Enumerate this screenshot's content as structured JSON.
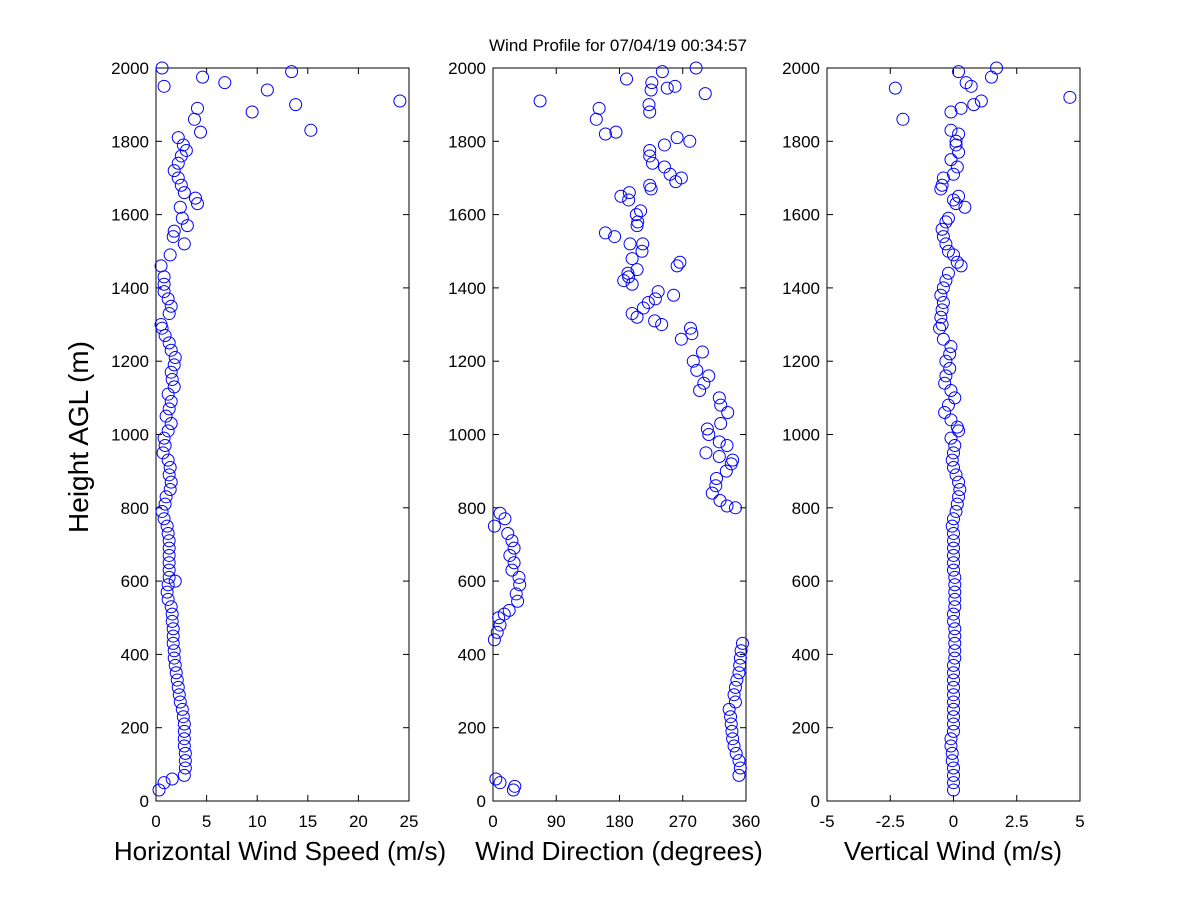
{
  "title": "Wind Profile for  07/04/19 00:34:57",
  "marker_color": "#0000ff",
  "chart_data": [
    {
      "id": "speed",
      "type": "scatter",
      "xlabel": "Horizontal Wind Speed (m/s)",
      "ylabel": "Height AGL (m)",
      "xlim": [
        0,
        25
      ],
      "ylim": [
        0,
        2000
      ],
      "xticks": [
        0,
        5,
        10,
        15,
        20,
        25
      ],
      "xtick_labels": [
        "0",
        "5",
        "10",
        "15",
        "20",
        "25"
      ],
      "yticks": [
        0,
        200,
        400,
        600,
        800,
        1000,
        1200,
        1400,
        1600,
        1800,
        2000
      ],
      "ytick_labels": [
        "0",
        "200",
        "400",
        "600",
        "800",
        "1000",
        "1200",
        "1400",
        "1600",
        "1800",
        "2000"
      ],
      "points": [
        [
          0.3,
          30
        ],
        [
          0.8,
          50
        ],
        [
          1.6,
          60
        ],
        [
          2.8,
          70
        ],
        [
          2.9,
          90
        ],
        [
          2.9,
          110
        ],
        [
          2.9,
          130
        ],
        [
          2.8,
          150
        ],
        [
          2.8,
          170
        ],
        [
          2.8,
          190
        ],
        [
          2.8,
          210
        ],
        [
          2.7,
          230
        ],
        [
          2.6,
          250
        ],
        [
          2.4,
          270
        ],
        [
          2.3,
          290
        ],
        [
          2.2,
          310
        ],
        [
          2.1,
          330
        ],
        [
          2.0,
          350
        ],
        [
          1.9,
          370
        ],
        [
          1.8,
          390
        ],
        [
          1.8,
          410
        ],
        [
          1.7,
          430
        ],
        [
          1.7,
          450
        ],
        [
          1.7,
          470
        ],
        [
          1.6,
          490
        ],
        [
          1.6,
          510
        ],
        [
          1.5,
          530
        ],
        [
          1.2,
          550
        ],
        [
          1.1,
          570
        ],
        [
          1.2,
          590
        ],
        [
          1.9,
          600
        ],
        [
          1.3,
          610
        ],
        [
          1.3,
          630
        ],
        [
          1.3,
          650
        ],
        [
          1.3,
          670
        ],
        [
          1.3,
          690
        ],
        [
          1.3,
          710
        ],
        [
          1.2,
          730
        ],
        [
          1.1,
          750
        ],
        [
          0.8,
          770
        ],
        [
          0.6,
          790
        ],
        [
          0.9,
          810
        ],
        [
          1.0,
          830
        ],
        [
          1.4,
          850
        ],
        [
          1.5,
          870
        ],
        [
          1.3,
          890
        ],
        [
          1.4,
          910
        ],
        [
          1.2,
          930
        ],
        [
          0.7,
          950
        ],
        [
          0.9,
          970
        ],
        [
          0.8,
          990
        ],
        [
          1.2,
          1010
        ],
        [
          1.5,
          1030
        ],
        [
          1.0,
          1050
        ],
        [
          1.3,
          1070
        ],
        [
          1.5,
          1090
        ],
        [
          1.2,
          1110
        ],
        [
          1.8,
          1130
        ],
        [
          1.6,
          1150
        ],
        [
          1.5,
          1170
        ],
        [
          1.8,
          1190
        ],
        [
          1.9,
          1210
        ],
        [
          1.5,
          1230
        ],
        [
          1.3,
          1250
        ],
        [
          0.9,
          1270
        ],
        [
          0.6,
          1290
        ],
        [
          0.5,
          1300
        ],
        [
          1.3,
          1330
        ],
        [
          1.5,
          1350
        ],
        [
          1.2,
          1370
        ],
        [
          0.8,
          1390
        ],
        [
          0.8,
          1410
        ],
        [
          0.8,
          1430
        ],
        [
          0.5,
          1460
        ],
        [
          1.4,
          1490
        ],
        [
          2.8,
          1520
        ],
        [
          1.7,
          1540
        ],
        [
          1.8,
          1555
        ],
        [
          3.1,
          1570
        ],
        [
          2.6,
          1590
        ],
        [
          2.4,
          1620
        ],
        [
          4.1,
          1630
        ],
        [
          3.9,
          1645
        ],
        [
          2.8,
          1660
        ],
        [
          2.5,
          1680
        ],
        [
          2.2,
          1700
        ],
        [
          1.8,
          1720
        ],
        [
          2.2,
          1740
        ],
        [
          2.5,
          1760
        ],
        [
          3.0,
          1775
        ],
        [
          2.7,
          1790
        ],
        [
          2.2,
          1810
        ],
        [
          4.4,
          1825
        ],
        [
          15.3,
          1830
        ],
        [
          3.8,
          1860
        ],
        [
          9.5,
          1880
        ],
        [
          4.1,
          1890
        ],
        [
          13.8,
          1900
        ],
        [
          24.1,
          1910
        ],
        [
          11.0,
          1940
        ],
        [
          0.8,
          1950
        ],
        [
          4.6,
          1975
        ],
        [
          6.8,
          1960
        ],
        [
          13.4,
          1990
        ],
        [
          0.6,
          2000
        ]
      ]
    },
    {
      "id": "direction",
      "type": "scatter",
      "xlabel": "Wind Direction (degrees)",
      "ylabel": "",
      "xlim": [
        0,
        360
      ],
      "ylim": [
        0,
        2000
      ],
      "xticks": [
        0,
        90,
        180,
        270,
        360
      ],
      "xtick_labels": [
        "0",
        "90",
        "180",
        "270",
        "360"
      ],
      "yticks": [
        0,
        200,
        400,
        600,
        800,
        1000,
        1200,
        1400,
        1600,
        1800,
        2000
      ],
      "ytick_labels": [
        "0",
        "200",
        "400",
        "600",
        "800",
        "1000",
        "1200",
        "1400",
        "1600",
        "1800",
        "2000"
      ],
      "points": [
        [
          29,
          30
        ],
        [
          31,
          40
        ],
        [
          4,
          60
        ],
        [
          10,
          50
        ],
        [
          350,
          70
        ],
        [
          352,
          90
        ],
        [
          350,
          110
        ],
        [
          346,
          130
        ],
        [
          343,
          150
        ],
        [
          341,
          170
        ],
        [
          340,
          190
        ],
        [
          339,
          210
        ],
        [
          338,
          230
        ],
        [
          336,
          250
        ],
        [
          345,
          270
        ],
        [
          343,
          290
        ],
        [
          345,
          310
        ],
        [
          347,
          330
        ],
        [
          350,
          350
        ],
        [
          351,
          370
        ],
        [
          352,
          390
        ],
        [
          353,
          410
        ],
        [
          355,
          430
        ],
        [
          2,
          440
        ],
        [
          6,
          460
        ],
        [
          10,
          480
        ],
        [
          8,
          500
        ],
        [
          16,
          510
        ],
        [
          23,
          520
        ],
        [
          35,
          545
        ],
        [
          33,
          565
        ],
        [
          38,
          590
        ],
        [
          37,
          610
        ],
        [
          27,
          630
        ],
        [
          30,
          650
        ],
        [
          24,
          670
        ],
        [
          30,
          690
        ],
        [
          27,
          710
        ],
        [
          21,
          730
        ],
        [
          2,
          750
        ],
        [
          17,
          770
        ],
        [
          10,
          785
        ],
        [
          345,
          800
        ],
        [
          333,
          805
        ],
        [
          323,
          820
        ],
        [
          312,
          840
        ],
        [
          317,
          860
        ],
        [
          318,
          880
        ],
        [
          332,
          900
        ],
        [
          339,
          920
        ],
        [
          341,
          930
        ],
        [
          322,
          940
        ],
        [
          303,
          950
        ],
        [
          333,
          970
        ],
        [
          322,
          980
        ],
        [
          307,
          1000
        ],
        [
          305,
          1015
        ],
        [
          324,
          1030
        ],
        [
          334,
          1060
        ],
        [
          324,
          1080
        ],
        [
          322,
          1100
        ],
        [
          294,
          1120
        ],
        [
          300,
          1140
        ],
        [
          307,
          1160
        ],
        [
          290,
          1175
        ],
        [
          285,
          1200
        ],
        [
          298,
          1225
        ],
        [
          268,
          1260
        ],
        [
          283,
          1275
        ],
        [
          281,
          1290
        ],
        [
          240,
          1300
        ],
        [
          230,
          1310
        ],
        [
          205,
          1320
        ],
        [
          198,
          1330
        ],
        [
          214,
          1345
        ],
        [
          221,
          1360
        ],
        [
          231,
          1370
        ],
        [
          257,
          1380
        ],
        [
          235,
          1390
        ],
        [
          198,
          1410
        ],
        [
          186,
          1420
        ],
        [
          193,
          1430
        ],
        [
          192,
          1440
        ],
        [
          205,
          1450
        ],
        [
          262,
          1460
        ],
        [
          266,
          1470
        ],
        [
          198,
          1480
        ],
        [
          212,
          1500
        ],
        [
          195,
          1520
        ],
        [
          213,
          1520
        ],
        [
          173,
          1540
        ],
        [
          160,
          1550
        ],
        [
          205,
          1570
        ],
        [
          206,
          1580
        ],
        [
          204,
          1600
        ],
        [
          210,
          1610
        ],
        [
          193,
          1640
        ],
        [
          182,
          1650
        ],
        [
          194,
          1660
        ],
        [
          225,
          1670
        ],
        [
          223,
          1680
        ],
        [
          260,
          1690
        ],
        [
          268,
          1700
        ],
        [
          252,
          1710
        ],
        [
          244,
          1730
        ],
        [
          227,
          1740
        ],
        [
          223,
          1760
        ],
        [
          223,
          1775
        ],
        [
          244,
          1790
        ],
        [
          280,
          1800
        ],
        [
          262,
          1810
        ],
        [
          175,
          1825
        ],
        [
          160,
          1820
        ],
        [
          147,
          1860
        ],
        [
          151,
          1890
        ],
        [
          223,
          1880
        ],
        [
          222,
          1900
        ],
        [
          67,
          1910
        ],
        [
          302,
          1930
        ],
        [
          225,
          1940
        ],
        [
          248,
          1945
        ],
        [
          259,
          1950
        ],
        [
          190,
          1970
        ],
        [
          226,
          1960
        ],
        [
          241,
          1990
        ],
        [
          289,
          2000
        ]
      ]
    },
    {
      "id": "vertical",
      "type": "scatter",
      "xlabel": "Vertical Wind (m/s)",
      "ylabel": "",
      "xlim": [
        -5,
        5
      ],
      "ylim": [
        0,
        2000
      ],
      "xticks": [
        -5,
        -2.5,
        0,
        2.5,
        5
      ],
      "xtick_labels": [
        "-5",
        "-2.5",
        "0",
        "2.5",
        "5"
      ],
      "yticks": [
        0,
        200,
        400,
        600,
        800,
        1000,
        1200,
        1400,
        1600,
        1800,
        2000
      ],
      "ytick_labels": [
        "0",
        "200",
        "400",
        "600",
        "800",
        "1000",
        "1200",
        "1400",
        "1600",
        "1800",
        "2000"
      ],
      "points": [
        [
          0.0,
          30
        ],
        [
          0.0,
          50
        ],
        [
          0.0,
          70
        ],
        [
          0.0,
          90
        ],
        [
          -0.05,
          110
        ],
        [
          -0.05,
          130
        ],
        [
          -0.1,
          150
        ],
        [
          -0.1,
          170
        ],
        [
          0.0,
          190
        ],
        [
          0.0,
          210
        ],
        [
          0.0,
          230
        ],
        [
          0.0,
          250
        ],
        [
          0.0,
          270
        ],
        [
          0.0,
          290
        ],
        [
          0.0,
          310
        ],
        [
          0.0,
          330
        ],
        [
          0.0,
          350
        ],
        [
          0.0,
          370
        ],
        [
          0.05,
          390
        ],
        [
          0.05,
          410
        ],
        [
          0.05,
          430
        ],
        [
          0.05,
          450
        ],
        [
          0.05,
          470
        ],
        [
          0.0,
          490
        ],
        [
          0.0,
          510
        ],
        [
          0.05,
          530
        ],
        [
          0.05,
          550
        ],
        [
          0.05,
          570
        ],
        [
          0.05,
          590
        ],
        [
          0.05,
          610
        ],
        [
          0.0,
          630
        ],
        [
          0.0,
          650
        ],
        [
          0.0,
          670
        ],
        [
          0.0,
          690
        ],
        [
          0.0,
          710
        ],
        [
          0.0,
          730
        ],
        [
          -0.05,
          750
        ],
        [
          0.0,
          770
        ],
        [
          0.1,
          790
        ],
        [
          0.15,
          810
        ],
        [
          0.2,
          830
        ],
        [
          0.25,
          850
        ],
        [
          0.2,
          870
        ],
        [
          0.1,
          890
        ],
        [
          0.0,
          910
        ],
        [
          -0.05,
          930
        ],
        [
          0.0,
          950
        ],
        [
          0.05,
          970
        ],
        [
          -0.1,
          990
        ],
        [
          0.2,
          1010
        ],
        [
          0.15,
          1020
        ],
        [
          -0.1,
          1040
        ],
        [
          -0.35,
          1060
        ],
        [
          -0.2,
          1080
        ],
        [
          0.05,
          1100
        ],
        [
          -0.1,
          1120
        ],
        [
          -0.35,
          1140
        ],
        [
          -0.3,
          1160
        ],
        [
          -0.15,
          1180
        ],
        [
          -0.3,
          1200
        ],
        [
          -0.15,
          1220
        ],
        [
          -0.1,
          1240
        ],
        [
          -0.4,
          1260
        ],
        [
          -0.55,
          1290
        ],
        [
          -0.45,
          1300
        ],
        [
          -0.5,
          1320
        ],
        [
          -0.45,
          1340
        ],
        [
          -0.4,
          1360
        ],
        [
          -0.5,
          1380
        ],
        [
          -0.4,
          1400
        ],
        [
          -0.3,
          1420
        ],
        [
          -0.2,
          1440
        ],
        [
          0.3,
          1460
        ],
        [
          0.15,
          1470
        ],
        [
          0.0,
          1490
        ],
        [
          -0.2,
          1500
        ],
        [
          -0.3,
          1520
        ],
        [
          -0.4,
          1540
        ],
        [
          -0.45,
          1560
        ],
        [
          -0.3,
          1580
        ],
        [
          -0.2,
          1590
        ],
        [
          0.45,
          1620
        ],
        [
          0.1,
          1630
        ],
        [
          0.0,
          1640
        ],
        [
          0.2,
          1650
        ],
        [
          -0.5,
          1670
        ],
        [
          -0.45,
          1680
        ],
        [
          -0.4,
          1700
        ],
        [
          0.0,
          1710
        ],
        [
          0.15,
          1730
        ],
        [
          -0.1,
          1750
        ],
        [
          0.2,
          1770
        ],
        [
          0.1,
          1790
        ],
        [
          0.1,
          1800
        ],
        [
          0.2,
          1820
        ],
        [
          -0.1,
          1830
        ],
        [
          -2.0,
          1860
        ],
        [
          -0.1,
          1880
        ],
        [
          0.3,
          1890
        ],
        [
          0.8,
          1900
        ],
        [
          1.1,
          1910
        ],
        [
          4.6,
          1920
        ],
        [
          -2.3,
          1945
        ],
        [
          0.7,
          1950
        ],
        [
          0.5,
          1960
        ],
        [
          1.5,
          1975
        ],
        [
          0.2,
          1990
        ],
        [
          1.7,
          2000
        ]
      ]
    }
  ]
}
